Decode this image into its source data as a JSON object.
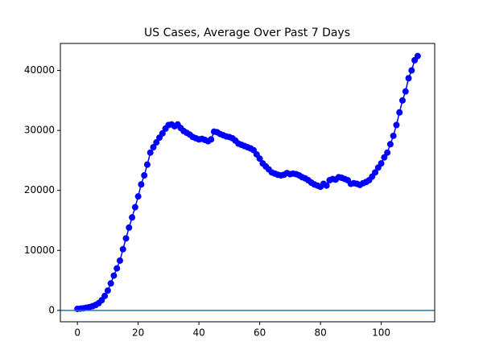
{
  "chart_data": {
    "type": "line",
    "title": "US Cases, Average Over Past 7 Days",
    "x": [
      0,
      1,
      2,
      3,
      4,
      5,
      6,
      7,
      8,
      9,
      10,
      11,
      12,
      13,
      14,
      15,
      16,
      17,
      18,
      19,
      20,
      21,
      22,
      23,
      24,
      25,
      26,
      27,
      28,
      29,
      30,
      31,
      32,
      33,
      34,
      35,
      36,
      37,
      38,
      39,
      40,
      41,
      42,
      43,
      44,
      45,
      46,
      47,
      48,
      49,
      50,
      51,
      52,
      53,
      54,
      55,
      56,
      57,
      58,
      59,
      60,
      61,
      62,
      63,
      64,
      65,
      66,
      67,
      68,
      69,
      70,
      71,
      72,
      73,
      74,
      75,
      76,
      77,
      78,
      79,
      80,
      81,
      82,
      83,
      84,
      85,
      86,
      87,
      88,
      89,
      90,
      91,
      92,
      93,
      94,
      95,
      96,
      97,
      98,
      99,
      100,
      101,
      102,
      103,
      104,
      105,
      106,
      107,
      108,
      109,
      110,
      111,
      112
    ],
    "series": [
      {
        "color": "#0000ff",
        "values": [
          250,
          300,
          350,
          450,
          550,
          700,
          900,
          1200,
          1700,
          2400,
          3300,
          4500,
          5800,
          7000,
          8300,
          10200,
          12000,
          13800,
          15500,
          17200,
          19000,
          21000,
          22500,
          24300,
          26300,
          27200,
          28000,
          28800,
          29500,
          30300,
          30900,
          31000,
          30700,
          31000,
          30400,
          29900,
          29600,
          29300,
          28900,
          28700,
          28500,
          28600,
          28400,
          28200,
          28500,
          29800,
          29700,
          29400,
          29200,
          29000,
          28900,
          28700,
          28300,
          27800,
          27600,
          27400,
          27200,
          27000,
          26700,
          26000,
          25300,
          24500,
          24000,
          23500,
          23000,
          22800,
          22600,
          22500,
          22600,
          22900,
          22700,
          22800,
          22700,
          22500,
          22200,
          22000,
          21700,
          21300,
          21000,
          20800,
          20600,
          21100,
          20800,
          21700,
          21900,
          21800,
          22200,
          22100,
          21900,
          21700,
          21100,
          21200,
          21100,
          20900,
          21200,
          21400,
          21700,
          22300,
          23000,
          23800,
          24500,
          25500,
          26300,
          27700,
          29100,
          30900,
          33000,
          35000,
          36500,
          38700,
          40000,
          41700,
          42400
        ]
      }
    ],
    "hline": 0,
    "hline_color": "#1f77b4",
    "xlim": [
      -5.6,
      117.6
    ],
    "xticks": [
      0,
      20,
      40,
      60,
      80,
      100
    ],
    "ylim": [
      -1900,
      44500
    ],
    "yticks": [
      0,
      10000,
      20000,
      30000,
      40000
    ]
  }
}
